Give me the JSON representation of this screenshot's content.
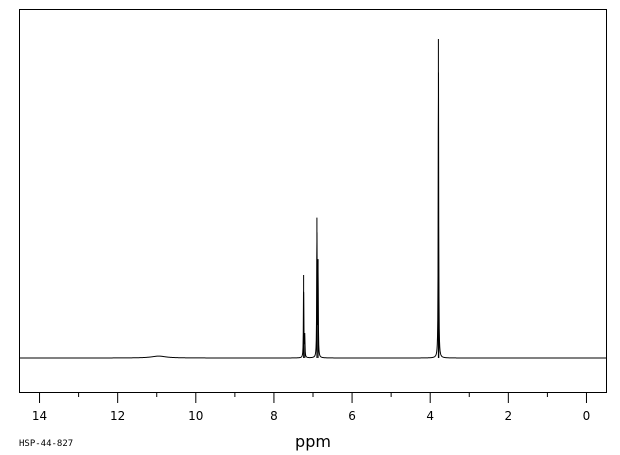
{
  "chart_data": {
    "type": "line",
    "title": "",
    "xlabel": "ppm",
    "ylabel": "",
    "xlim": [
      14.5,
      -0.5
    ],
    "x_reversed": true,
    "ylim": [
      -0.1,
      1.03
    ],
    "grid": false,
    "legend": "none",
    "tick_labels": [
      "14",
      "12",
      "10",
      "8",
      "6",
      "4",
      "2",
      "0"
    ],
    "tick_values": [
      14,
      12,
      10,
      8,
      6,
      4,
      2,
      0
    ],
    "minor_tick_step": 1,
    "baseline": 0,
    "peaks": [
      {
        "center": 10.95,
        "height": 0.006,
        "width": 0.22,
        "shape": "broad"
      },
      {
        "center": 7.24,
        "height": 0.26,
        "width": 0.006
      },
      {
        "center": 7.21,
        "height": 0.07,
        "width": 0.006
      },
      {
        "center": 6.9,
        "height": 0.44,
        "width": 0.006
      },
      {
        "center": 6.87,
        "height": 0.31,
        "width": 0.006
      },
      {
        "center": 3.79,
        "height": 1.0,
        "width": 0.006
      },
      {
        "center": 3.78,
        "height": 0.1,
        "width": 0.006
      }
    ],
    "line_color": "#000000"
  },
  "footer": {
    "spectrum_id": "HSP-44-827"
  }
}
